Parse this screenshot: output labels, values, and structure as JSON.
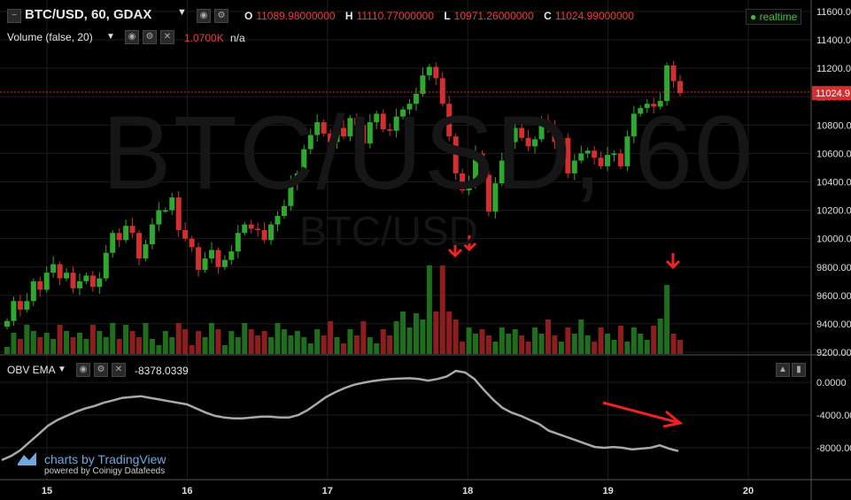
{
  "header": {
    "symbol_title": "BTC/USD, 60, GDAX",
    "open_label": "O",
    "open_value": "11089.98000000",
    "high_label": "H",
    "high_value": "11110.77000000",
    "low_label": "L",
    "low_value": "10971.26000000",
    "close_label": "C",
    "close_value": "11024.99000000",
    "realtime_label": "realtime"
  },
  "volume_indicator": {
    "label": "Volume (false, 20)",
    "value": "1.0700K",
    "value2": "n/a"
  },
  "obv_indicator": {
    "label": "OBV EMA",
    "value": "-8378.0339"
  },
  "watermark": {
    "big": "BTC/USD, 60",
    "small": "BTC/USD"
  },
  "branding": {
    "line1": "charts by TradingView",
    "line2": "powered by Coinigy Datafeeds"
  },
  "price_axis": {
    "ticks": [
      "11600.00",
      "11400.00",
      "11200.00",
      "11000.00",
      "10800.00",
      "10600.00",
      "10400.00",
      "10200.00",
      "10000.00",
      "9800.00",
      "9600.00",
      "9400.00",
      "9200.00"
    ],
    "current_price_label": "11024.9"
  },
  "obv_axis": {
    "ticks": [
      "0.0000",
      "-4000.0000",
      "-8000.0000"
    ]
  },
  "time_axis": {
    "ticks": [
      "15",
      "16",
      "17",
      "18",
      "19",
      "20"
    ]
  },
  "colors": {
    "up": "#2fa82f",
    "down": "#d42f2f",
    "obv_line": "#a9a9a9",
    "annotation": "#ee2222",
    "grid": "#1c1c1c"
  },
  "chart_data": [
    {
      "type": "candlestick",
      "title": "BTC/USD, 60, GDAX",
      "x_ticks": [
        "15",
        "16",
        "17",
        "18",
        "19",
        "20"
      ],
      "ylim": [
        9200,
        11600
      ],
      "candle_closes": [
        9420,
        9560,
        9500,
        9560,
        9700,
        9640,
        9760,
        9820,
        9720,
        9760,
        9650,
        9700,
        9740,
        9660,
        9720,
        9900,
        10040,
        9990,
        10090,
        10040,
        9860,
        9960,
        10100,
        10200,
        10200,
        10290,
        10060,
        10000,
        9940,
        9780,
        9860,
        9920,
        9800,
        9850,
        9910,
        10040,
        10100,
        10070,
        10060,
        9990,
        10100,
        10160,
        10230,
        10390,
        10460,
        10630,
        10730,
        10820,
        10740,
        10680,
        10780,
        10720,
        10850,
        10800,
        10670,
        10820,
        10880,
        10770,
        10760,
        10860,
        10910,
        10950,
        11020,
        11150,
        11210,
        11130,
        10950,
        10720,
        10460,
        10340,
        10400,
        10600,
        10450,
        10190,
        10390,
        10550,
        10680,
        10780,
        10710,
        10650,
        10700,
        10830,
        10780,
        10680,
        10710,
        10460,
        10550,
        10600,
        10620,
        10570,
        10510,
        10590,
        10600,
        10510,
        10720,
        10880,
        10920,
        10950,
        10930,
        10970,
        11220,
        11110,
        11025
      ],
      "volume_series": "volume bars colored by candle direction; spikes near 18 and late 19",
      "ylabel": "",
      "xlabel": ""
    },
    {
      "type": "line",
      "name": "OBV EMA",
      "x_ticks": [
        "15",
        "16",
        "17",
        "18",
        "19",
        "20"
      ],
      "ylim": [
        -10000,
        1200
      ],
      "obv_values": [
        -9500,
        -9000,
        -8300,
        -7300,
        -6300,
        -5300,
        -4600,
        -4100,
        -3600,
        -3200,
        -2900,
        -2500,
        -2200,
        -1900,
        -1800,
        -1700,
        -1900,
        -2100,
        -2300,
        -2500,
        -2700,
        -3200,
        -3700,
        -4100,
        -4300,
        -4400,
        -4400,
        -4300,
        -4200,
        -4200,
        -4300,
        -4300,
        -4000,
        -3400,
        -2600,
        -1800,
        -1200,
        -700,
        -300,
        -50,
        150,
        300,
        400,
        450,
        500,
        400,
        200,
        400,
        700,
        1400,
        1200,
        400,
        -900,
        -2100,
        -3100,
        -3700,
        -4100,
        -4600,
        -5100,
        -5900,
        -6300,
        -6700,
        -7100,
        -7500,
        -7900,
        -8000,
        -7900,
        -8000,
        -8200,
        -8100,
        -8000,
        -7700,
        -8100,
        -8400
      ]
    }
  ]
}
